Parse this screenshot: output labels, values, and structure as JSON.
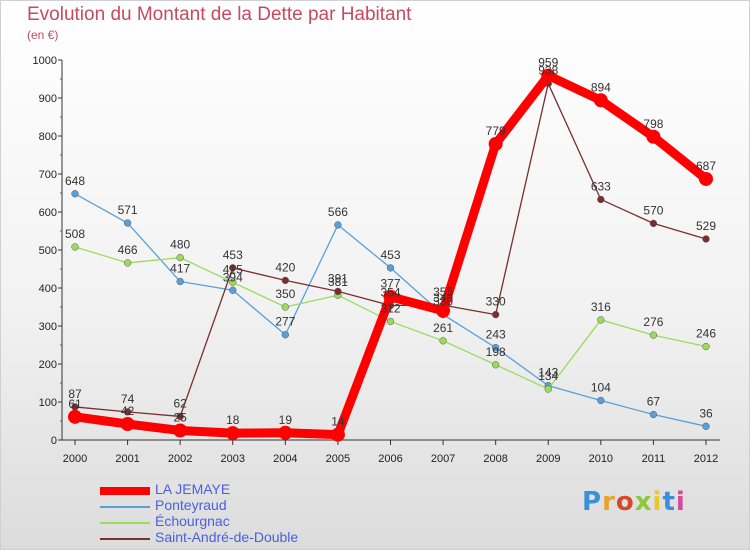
{
  "header": {
    "title": "Evolution du Montant de la Dette par Habitant",
    "subtitle": "(en €)"
  },
  "logo": {
    "text": "Proxiti",
    "colors": [
      "#3a8fd6",
      "#e8a32c",
      "#d64a2c",
      "#8cc63e",
      "#e8c82c",
      "#3a8fd6",
      "#d64a9a"
    ]
  },
  "chart_data": {
    "type": "line",
    "x": [
      "2000",
      "2001",
      "2002",
      "2003",
      "2004",
      "2005",
      "2006",
      "2007",
      "2008",
      "2009",
      "2010",
      "2011",
      "2012"
    ],
    "ylim": [
      0,
      1000
    ],
    "yticks": [
      0,
      100,
      200,
      300,
      400,
      500,
      600,
      700,
      800,
      900,
      1000
    ],
    "grid": false,
    "legend_position": "bottom-left",
    "series": [
      {
        "name": "LA JEMAYE",
        "color": "#ff0000",
        "values": [
          61,
          42,
          25,
          18,
          19,
          14,
          377,
          340,
          779,
          959,
          894,
          798,
          687
        ],
        "labels": [
          "61",
          "42",
          "25",
          "18",
          "19",
          "14",
          "377",
          "340",
          "779",
          "959",
          "894",
          "798",
          "687"
        ]
      },
      {
        "name": "Ponteyraud",
        "color": "#5aa0d8",
        "values": [
          648,
          571,
          417,
          394,
          277,
          566,
          453,
          330,
          243,
          143,
          104,
          67,
          36
        ],
        "labels": [
          "648",
          "571",
          "417",
          "394",
          "277",
          "566",
          "453",
          "330",
          "243",
          "143",
          "104",
          "67",
          "36"
        ]
      },
      {
        "name": "Échourgnac",
        "color": "#9adc5a",
        "values": [
          508,
          466,
          480,
          415,
          350,
          381,
          312,
          261,
          198,
          134,
          316,
          276,
          246
        ],
        "labels": [
          "508",
          "466",
          "480",
          "415",
          "350",
          "381",
          "312",
          "261",
          "198",
          "134",
          "316",
          "276",
          "246"
        ]
      },
      {
        "name": "Saint-André-de-Double",
        "color": "#7a2e2e",
        "values": [
          87,
          74,
          62,
          453,
          420,
          391,
          354,
          355,
          330,
          938,
          633,
          570,
          529
        ],
        "labels": [
          "87",
          "74",
          "62",
          "453",
          "420",
          "391",
          "354",
          "355",
          "330",
          "938",
          "633",
          "570",
          "529"
        ]
      }
    ]
  }
}
